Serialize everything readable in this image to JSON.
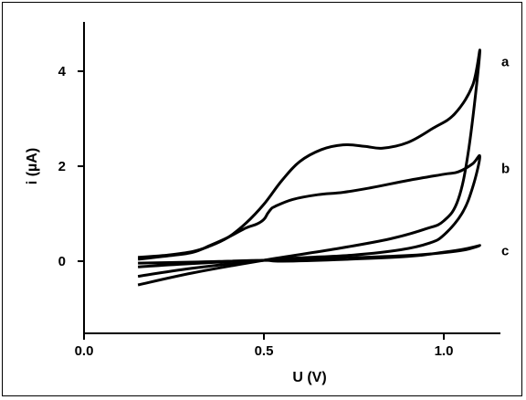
{
  "chart_data": {
    "type": "line",
    "title": "",
    "xlabel": "U (V)",
    "ylabel": "i (µA)",
    "xlim": [
      0.0,
      1.15
    ],
    "ylim": [
      -1.5,
      5.2
    ],
    "x_ticks": [
      0.0,
      0.5,
      1.0
    ],
    "x_tick_labels": [
      "0.0",
      "0.5",
      "1.0"
    ],
    "y_ticks": [
      0,
      2,
      4
    ],
    "y_tick_labels": [
      "0",
      "2",
      "4"
    ],
    "grid": false,
    "legend": "none",
    "series": [
      {
        "label": "a",
        "label_at": [
          1.16,
          4.2
        ],
        "points": [
          [
            0.15,
            -0.5
          ],
          [
            0.3,
            -0.25
          ],
          [
            0.5,
            0.02
          ],
          [
            0.7,
            0.26
          ],
          [
            0.85,
            0.47
          ],
          [
            0.95,
            0.68
          ],
          [
            1.0,
            0.85
          ],
          [
            1.04,
            1.3
          ],
          [
            1.07,
            2.4
          ],
          [
            1.1,
            4.4
          ],
          [
            1.08,
            3.7
          ],
          [
            1.03,
            3.1
          ],
          [
            0.97,
            2.8
          ],
          [
            0.9,
            2.5
          ],
          [
            0.83,
            2.38
          ],
          [
            0.78,
            2.42
          ],
          [
            0.72,
            2.45
          ],
          [
            0.66,
            2.35
          ],
          [
            0.6,
            2.1
          ],
          [
            0.55,
            1.7
          ],
          [
            0.5,
            1.2
          ],
          [
            0.45,
            0.8
          ],
          [
            0.4,
            0.5
          ],
          [
            0.35,
            0.32
          ],
          [
            0.3,
            0.2
          ],
          [
            0.22,
            0.12
          ],
          [
            0.15,
            0.08
          ]
        ]
      },
      {
        "label": "b",
        "label_at": [
          1.16,
          1.95
        ],
        "points": [
          [
            0.15,
            -0.32
          ],
          [
            0.3,
            -0.15
          ],
          [
            0.5,
            0.02
          ],
          [
            0.6,
            0.07
          ],
          [
            0.75,
            0.13
          ],
          [
            0.88,
            0.24
          ],
          [
            0.96,
            0.38
          ],
          [
            1.0,
            0.55
          ],
          [
            1.05,
            1.0
          ],
          [
            1.08,
            1.55
          ],
          [
            1.1,
            2.2
          ],
          [
            1.08,
            2.05
          ],
          [
            1.04,
            1.88
          ],
          [
            1.0,
            1.83
          ],
          [
            0.9,
            1.7
          ],
          [
            0.8,
            1.55
          ],
          [
            0.72,
            1.45
          ],
          [
            0.65,
            1.4
          ],
          [
            0.58,
            1.3
          ],
          [
            0.53,
            1.15
          ],
          [
            0.52,
            1.1
          ],
          [
            0.51,
            1.0
          ],
          [
            0.5,
            0.88
          ],
          [
            0.48,
            0.78
          ],
          [
            0.45,
            0.7
          ],
          [
            0.4,
            0.5
          ],
          [
            0.35,
            0.33
          ],
          [
            0.3,
            0.18
          ],
          [
            0.22,
            0.1
          ],
          [
            0.15,
            0.04
          ]
        ]
      },
      {
        "label": "c",
        "label_at": [
          1.16,
          0.22
        ],
        "points": [
          [
            0.15,
            -0.12
          ],
          [
            0.3,
            -0.05
          ],
          [
            0.5,
            0.02
          ],
          [
            0.7,
            0.06
          ],
          [
            0.9,
            0.12
          ],
          [
            1.0,
            0.18
          ],
          [
            1.06,
            0.24
          ],
          [
            1.1,
            0.33
          ],
          [
            1.06,
            0.26
          ],
          [
            1.0,
            0.19
          ],
          [
            0.9,
            0.1
          ],
          [
            0.7,
            0.03
          ],
          [
            0.55,
            0.0
          ],
          [
            0.5,
            0.02
          ],
          [
            0.4,
            0.0
          ],
          [
            0.3,
            -0.02
          ],
          [
            0.15,
            -0.04
          ]
        ]
      }
    ]
  }
}
